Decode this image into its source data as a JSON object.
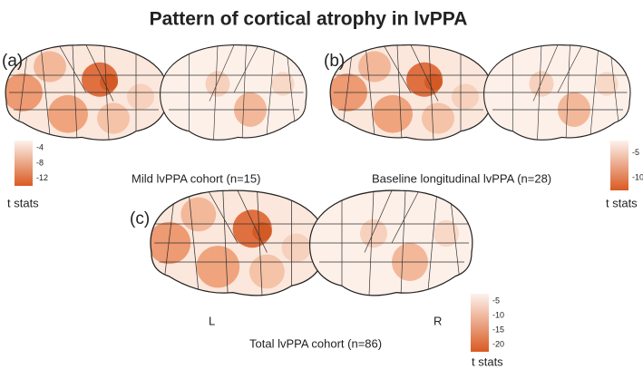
{
  "title": "Pattern of cortical atrophy in lvPPA",
  "panels": [
    {
      "label": "(a)",
      "caption": "Mild lvPPA cohort (n=15)",
      "colorbar": {
        "ticks": [
          "-4",
          "-8",
          "-12"
        ],
        "label": "t stats"
      }
    },
    {
      "label": "(b)",
      "caption": "Baseline longitudinal lvPPA (n=28)",
      "colorbar": {
        "ticks": [
          "-5",
          "-10"
        ],
        "label": "t stats"
      }
    },
    {
      "label": "(c)",
      "caption": "Total lvPPA cohort (n=86)",
      "colorbar": {
        "ticks": [
          "-5",
          "-10",
          "-15",
          "-20"
        ],
        "label": "t stats"
      },
      "hemispheres": [
        "L",
        "R"
      ]
    }
  ]
}
